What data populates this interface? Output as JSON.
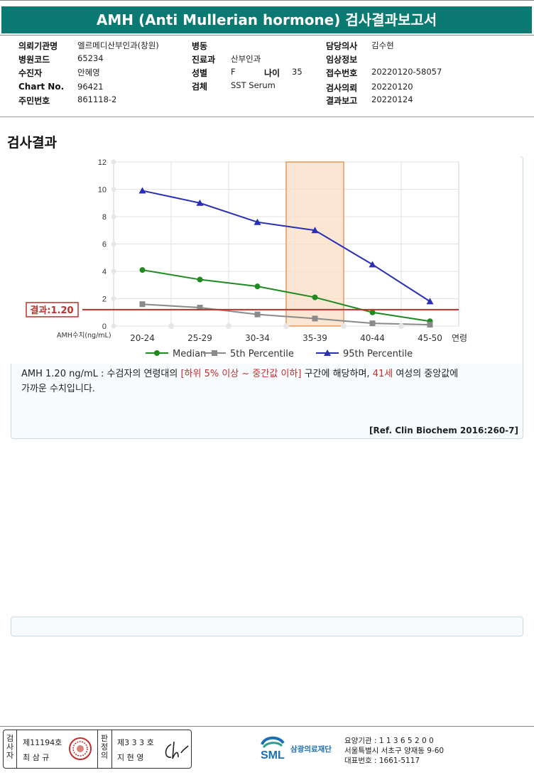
{
  "report": {
    "title": "AMH (Anti Mullerian hormone) 검사결과보고서"
  },
  "info": {
    "col1": [
      {
        "label": "의뢰기관명",
        "value": "엘르메디산부인과(창원)"
      },
      {
        "label": "병원코드",
        "value": "65234"
      },
      {
        "label": "수진자",
        "value": "안혜영"
      },
      {
        "label": "Chart No.",
        "value": "96421"
      },
      {
        "label": "주민번호",
        "value": "861118-2"
      }
    ],
    "col2": [
      {
        "label": "병동",
        "value": ""
      },
      {
        "label": "진료과",
        "value": "산부인과"
      },
      {
        "label": "성별",
        "value": "F"
      },
      {
        "label": "검체",
        "value": "SST Serum"
      }
    ],
    "age_label": "나이",
    "age_value": "35",
    "col3": [
      {
        "label": "담당의사",
        "value": "김수현"
      },
      {
        "label": "임상정보",
        "value": ""
      },
      {
        "label": "접수번호",
        "value": "20220120-58057"
      },
      {
        "label": "검사의뢰",
        "value": "20220120"
      },
      {
        "label": "결과보고",
        "value": "20220124"
      }
    ]
  },
  "section_title": "검사결과",
  "chart_data": {
    "type": "line",
    "categories": [
      "20-24",
      "25-29",
      "30-34",
      "35-39",
      "40-44",
      "45-50"
    ],
    "series": [
      {
        "name": "Median",
        "color": "#1f8a1f",
        "marker": "circle",
        "values": [
          4.1,
          3.4,
          2.9,
          2.1,
          1.0,
          0.35
        ]
      },
      {
        "name": "5th Percentile",
        "color": "#8a8a8a",
        "marker": "square",
        "values": [
          1.6,
          1.35,
          0.85,
          0.55,
          0.2,
          0.1
        ]
      },
      {
        "name": "95th Percentile",
        "color": "#2a2fb8",
        "marker": "triangle",
        "values": [
          9.9,
          9.0,
          7.6,
          7.0,
          4.5,
          1.8
        ]
      }
    ],
    "ylim": [
      0,
      12
    ],
    "yticks": [
      "0",
      "2",
      "4",
      "6",
      "8",
      "10",
      "12"
    ],
    "ylabel": "AMH수치(ng/mL)",
    "xlabel": "연령",
    "highlight_category": "35-39",
    "result_line": {
      "label": "결과:1.20",
      "value": 1.2,
      "color": "#c0302a"
    },
    "grid": true,
    "legend": "bottom"
  },
  "description": {
    "part1": "AMH  1.20 ng/mL : 수검자의 연령대의 ",
    "red1": "[하위 5% 이상 ~ 중간값 이하]",
    "part2": " 구간에 해당하며, ",
    "red2": "41세",
    "part3": " 여성의 중앙값에",
    "line2": "가까운 수치입니다."
  },
  "reference": "[Ref. Clin Biochem 2016:260-7]",
  "signature": {
    "label1": "검사자",
    "license1": "제11194호",
    "name1": "최 삼 규",
    "label2": "판정의",
    "license2": "제3 3 3 호",
    "name2": "지 현 영"
  },
  "org": {
    "logo_text": "SML",
    "name": "삼광의료재단",
    "line1": "요양기관 : 1 1 3 6 5 2 0 0",
    "line2": "서울특별시 서초구 양재동 9-60",
    "line3": "대표번호 : 1661-5117"
  }
}
